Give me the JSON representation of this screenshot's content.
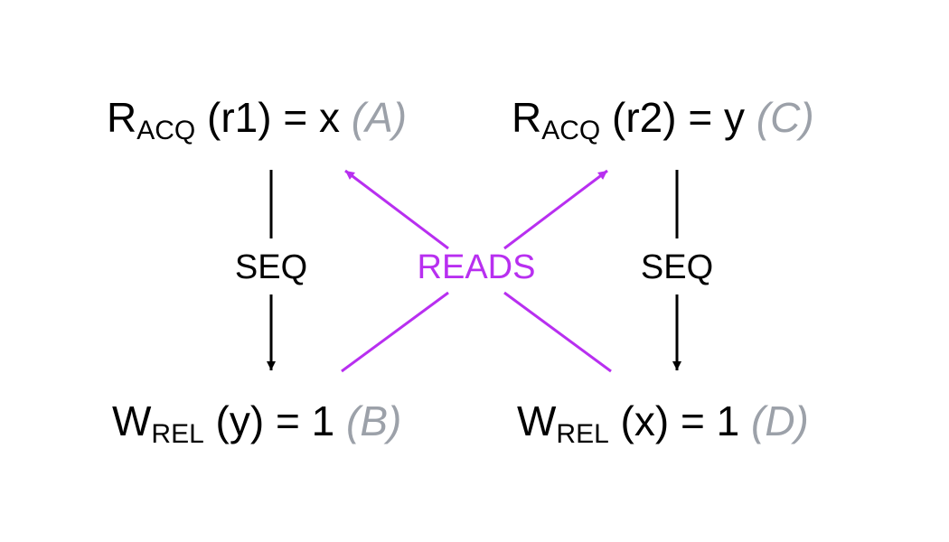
{
  "colors": {
    "text": "#000000",
    "tag": "#9ca1a9",
    "seq": "#000000",
    "reads": "#b82ff0"
  },
  "nodes": {
    "a": {
      "main": "R",
      "sub": "ACQ",
      "expr": " (r1) = x ",
      "tag": "(A)"
    },
    "b": {
      "main": "W",
      "sub": "REL",
      "expr": " (y) = 1 ",
      "tag": "(B)"
    },
    "c": {
      "main": "R",
      "sub": "ACQ",
      "expr": " (r2) = y ",
      "tag": "(C)"
    },
    "d": {
      "main": "W",
      "sub": "REL",
      "expr": " (x) = 1 ",
      "tag": "(D)"
    }
  },
  "edges": {
    "seq_left": {
      "label": "SEQ"
    },
    "seq_right": {
      "label": "SEQ"
    },
    "reads": {
      "label": "READS"
    }
  }
}
